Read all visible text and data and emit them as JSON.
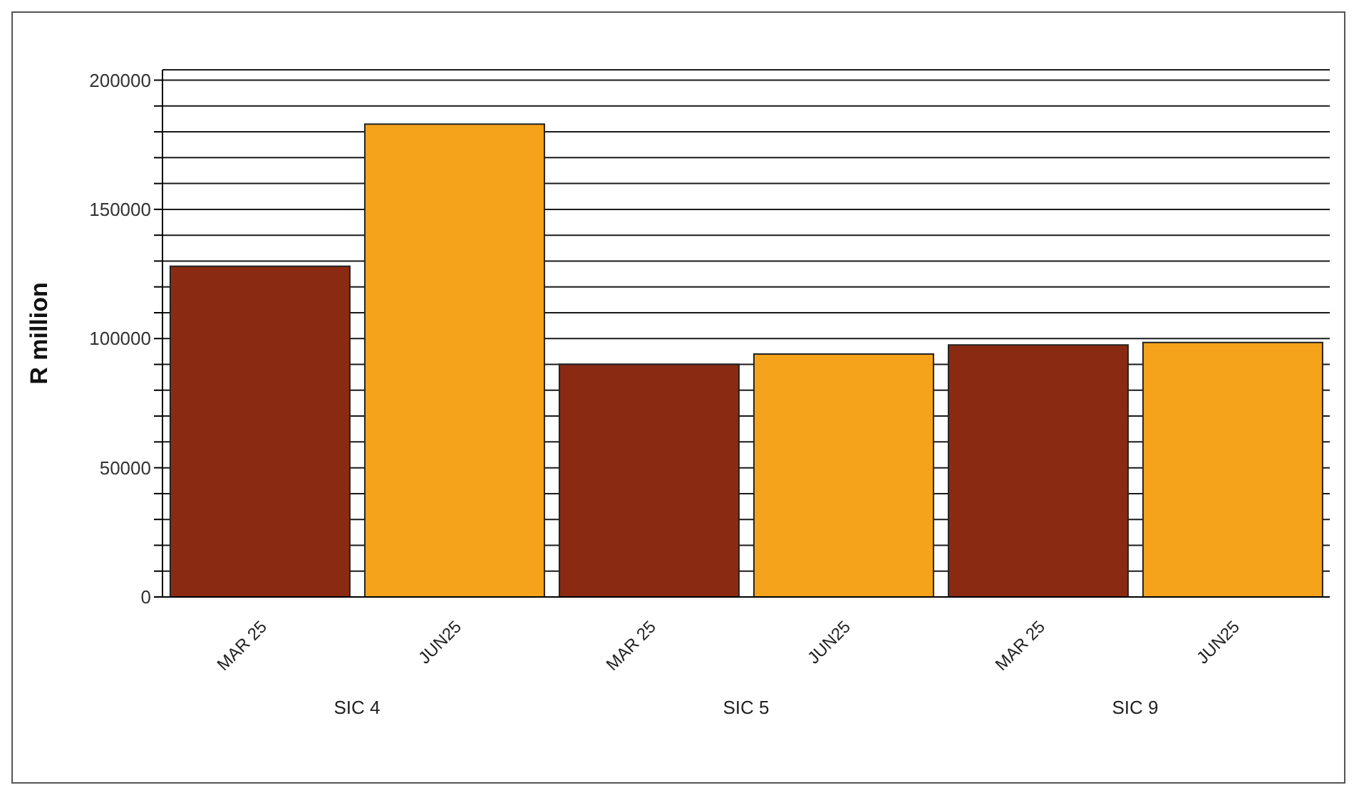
{
  "chart_data": {
    "type": "bar",
    "ylabel": "R million",
    "categories": [
      "MAR 25",
      "JUN25",
      "MAR 25",
      "JUN25",
      "MAR 25",
      "JUN25"
    ],
    "values": [
      128000,
      183000,
      90000,
      94000,
      97500,
      98500
    ],
    "colors": [
      "#8b2a12",
      "#f5a31a",
      "#8b2a12",
      "#f5a31a",
      "#8b2a12",
      "#f5a31a"
    ],
    "annotations": [
      "SIC 4",
      "SIC 5",
      "SIC 9"
    ],
    "ylim": [
      0,
      204000
    ],
    "yticks": [
      0,
      {
        "value": 10000,
        "label": null
      },
      {
        "value": 20000,
        "label": null
      },
      {
        "value": 30000,
        "label": null
      },
      {
        "value": 40000,
        "label": null
      },
      50000,
      {
        "value": 60000,
        "label": null
      },
      {
        "value": 70000,
        "label": null
      },
      {
        "value": 80000,
        "label": null
      },
      {
        "value": 90000,
        "label": null
      },
      100000,
      {
        "value": 110000,
        "label": null
      },
      {
        "value": 120000,
        "label": null
      },
      {
        "value": 130000,
        "label": null
      },
      {
        "value": 140000,
        "label": null
      },
      150000,
      {
        "value": 160000,
        "label": null
      },
      {
        "value": 170000,
        "label": null
      },
      {
        "value": 180000,
        "label": null
      },
      {
        "value": 190000,
        "label": null
      },
      200000
    ],
    "grid": "y"
  }
}
